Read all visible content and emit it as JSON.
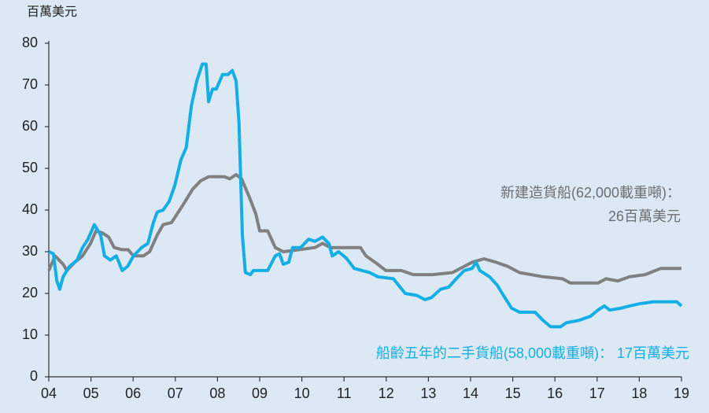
{
  "chart_data": {
    "type": "line",
    "y_label": "百萬美元",
    "xlim": [
      2004,
      2019
    ],
    "xticks": [
      {
        "value": 2004,
        "label": "04"
      },
      {
        "value": 2005,
        "label": "05"
      },
      {
        "value": 2006,
        "label": "06"
      },
      {
        "value": 2007,
        "label": "07"
      },
      {
        "value": 2008,
        "label": "08"
      },
      {
        "value": 2009,
        "label": "09"
      },
      {
        "value": 2010,
        "label": "10"
      },
      {
        "value": 2011,
        "label": "11"
      },
      {
        "value": 2012,
        "label": "12"
      },
      {
        "value": 2013,
        "label": "13"
      },
      {
        "value": 2014,
        "label": "14"
      },
      {
        "value": 2015,
        "label": "15"
      },
      {
        "value": 2016,
        "label": "16"
      },
      {
        "value": 2017,
        "label": "17"
      },
      {
        "value": 2018,
        "label": "18"
      },
      {
        "value": 2019,
        "label": "19"
      }
    ],
    "ylim": [
      0,
      80
    ],
    "yticks": [
      0,
      10,
      20,
      30,
      40,
      50,
      60,
      70,
      80
    ],
    "grid": false,
    "annotations": [
      {
        "text": "新建造貨船(62,000載重噸)：",
        "color": "#6d6e70"
      },
      {
        "text": "26百萬美元",
        "color": "#6d6e70"
      },
      {
        "text": "船齡五年的二手貨船(58,000載重噸)： 17百萬美元",
        "color": "#14aee6"
      }
    ],
    "series": [
      {
        "color": "#808080",
        "x": [
          2004.0,
          2004.15,
          2004.34,
          2004.43,
          2004.62,
          2004.8,
          2004.99,
          2005.12,
          2005.27,
          2005.42,
          2005.55,
          2005.74,
          2005.88,
          2006.01,
          2006.24,
          2006.39,
          2006.57,
          2006.71,
          2006.91,
          2007.04,
          2007.23,
          2007.41,
          2007.6,
          2007.79,
          2008.16,
          2008.29,
          2008.44,
          2008.57,
          2008.76,
          2008.91,
          2009.0,
          2009.19,
          2009.37,
          2009.56,
          2009.93,
          2010.31,
          2010.49,
          2010.68,
          2011.05,
          2011.39,
          2011.52,
          2011.8,
          2011.99,
          2012.36,
          2012.64,
          2013.1,
          2013.57,
          2013.85,
          2014.04,
          2014.32,
          2014.6,
          2014.88,
          2015.16,
          2015.72,
          2016.18,
          2016.37,
          2017.02,
          2017.21,
          2017.49,
          2017.77,
          2018.14,
          2018.51,
          2019.0
        ],
        "values": [
          25.5,
          29,
          27,
          25.5,
          27.5,
          29,
          32,
          35,
          34.5,
          33.5,
          31,
          30.5,
          30.5,
          29,
          29,
          30,
          34,
          36.5,
          37,
          39,
          42,
          45,
          47,
          48,
          48,
          47.5,
          48.5,
          47.5,
          43,
          39,
          35,
          35,
          31,
          30,
          30.5,
          31,
          32,
          31,
          31,
          31,
          29,
          27,
          25.5,
          25.5,
          24.5,
          24.5,
          25,
          26.5,
          27.5,
          28.3,
          27.5,
          26.5,
          25,
          24,
          23.5,
          22.5,
          22.5,
          23.5,
          23,
          24,
          24.5,
          26,
          26
        ]
      },
      {
        "color": "#14aee6",
        "x": [
          2004.0,
          2004.11,
          2004.19,
          2004.26,
          2004.34,
          2004.49,
          2004.67,
          2004.8,
          2004.93,
          2005.08,
          2005.23,
          2005.32,
          2005.46,
          2005.6,
          2005.74,
          2005.87,
          2006.01,
          2006.2,
          2006.35,
          2006.48,
          2006.57,
          2006.71,
          2006.85,
          2006.99,
          2007.13,
          2007.26,
          2007.38,
          2007.51,
          2007.64,
          2007.73,
          2007.79,
          2007.88,
          2007.97,
          2008.12,
          2008.25,
          2008.35,
          2008.44,
          2008.51,
          2008.59,
          2008.66,
          2008.78,
          2008.85,
          2009.19,
          2009.37,
          2009.47,
          2009.56,
          2009.69,
          2009.78,
          2009.97,
          2010.16,
          2010.31,
          2010.49,
          2010.64,
          2010.72,
          2010.87,
          2011.05,
          2011.24,
          2011.43,
          2011.61,
          2011.8,
          2012.17,
          2012.45,
          2012.73,
          2012.92,
          2013.07,
          2013.29,
          2013.48,
          2013.66,
          2013.85,
          2014.04,
          2014.13,
          2014.22,
          2014.45,
          2014.63,
          2014.78,
          2014.97,
          2015.16,
          2015.34,
          2015.53,
          2015.72,
          2015.9,
          2016.13,
          2016.28,
          2016.56,
          2016.84,
          2017.02,
          2017.17,
          2017.3,
          2017.58,
          2017.77,
          2017.99,
          2018.33,
          2018.89,
          2019.0
        ],
        "values": [
          30,
          29.5,
          23,
          21,
          24,
          26.5,
          28,
          31,
          33,
          36.5,
          34,
          29,
          28,
          29,
          25.5,
          26.5,
          29,
          31,
          32,
          37,
          39.5,
          40,
          42,
          46,
          52,
          55,
          65,
          71,
          75,
          75,
          66,
          69,
          69,
          72.5,
          72.5,
          73.5,
          71,
          61,
          34,
          25,
          24.5,
          25.5,
          25.5,
          29,
          29.5,
          27,
          27.5,
          31,
          31,
          33,
          32.5,
          33.5,
          32,
          29,
          30,
          28.5,
          26,
          25.5,
          25,
          24,
          23.5,
          20,
          19.5,
          18.5,
          19,
          21,
          21.5,
          23.5,
          25.5,
          26,
          27.5,
          25.5,
          24,
          22,
          19.5,
          16.5,
          15.5,
          15.5,
          15.5,
          13.5,
          12,
          12,
          13,
          13.5,
          14.5,
          16,
          17,
          16,
          16.5,
          17,
          17.5,
          18,
          18,
          17
        ]
      }
    ]
  }
}
